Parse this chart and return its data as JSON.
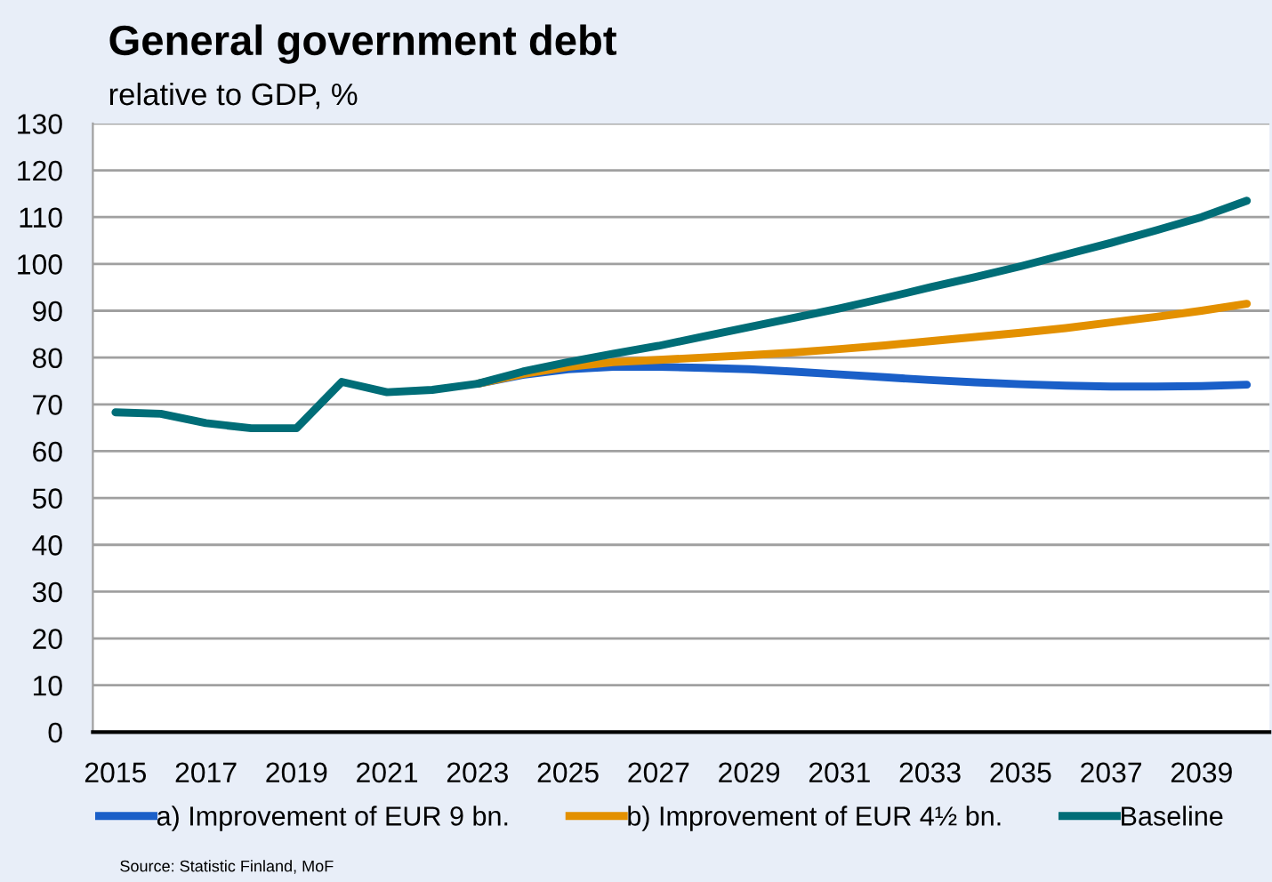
{
  "chart_data": {
    "type": "line",
    "title": "General government debt",
    "subtitle": "relative to GDP, %",
    "categories": [
      "2015",
      null,
      "2017",
      null,
      "2019",
      null,
      "2021",
      null,
      "2023",
      null,
      "2025",
      null,
      "2027",
      null,
      "2029",
      null,
      "2031",
      null,
      "2033",
      null,
      "2035",
      null,
      "2037",
      null,
      "2039",
      null
    ],
    "series": [
      {
        "name": "a) Improvement of EUR 9 bn.",
        "color": "#1a5fc8",
        "values": [
          null,
          null,
          null,
          null,
          null,
          null,
          null,
          null,
          74.4,
          76.3,
          77.5,
          78,
          78,
          77.8,
          77.5,
          77,
          76.4,
          75.8,
          75.2,
          74.7,
          74.3,
          74,
          73.8,
          73.8,
          73.9,
          74.2
        ]
      },
      {
        "name": "b) Improvement of EUR 4½ bn.",
        "color": "#e39000",
        "values": [
          null,
          null,
          null,
          null,
          null,
          null,
          null,
          null,
          74.4,
          76.5,
          78,
          79,
          79.5,
          80,
          80.5,
          81.1,
          81.8,
          82.6,
          83.5,
          84.4,
          85.3,
          86.3,
          87.5,
          88.7,
          90,
          91.5
        ]
      },
      {
        "name": "Baseline",
        "color": "#006d77",
        "values": [
          68.3,
          68,
          66,
          64.9,
          64.9,
          74.8,
          72.6,
          73.1,
          74.4,
          77,
          79,
          80.8,
          82.5,
          84.5,
          86.5,
          88.5,
          90.5,
          92.7,
          95,
          97.2,
          99.5,
          102,
          104.5,
          107.2,
          110,
          113.5
        ]
      }
    ],
    "ylim": [
      0,
      130
    ],
    "yticks": [
      0,
      10,
      20,
      30,
      40,
      50,
      60,
      70,
      80,
      90,
      100,
      110,
      120,
      130
    ],
    "grid": "y",
    "legend": "bottom",
    "marker": "none",
    "line_style": "solid",
    "annotations": [
      "Source: Statistic Finland, MoF"
    ]
  }
}
